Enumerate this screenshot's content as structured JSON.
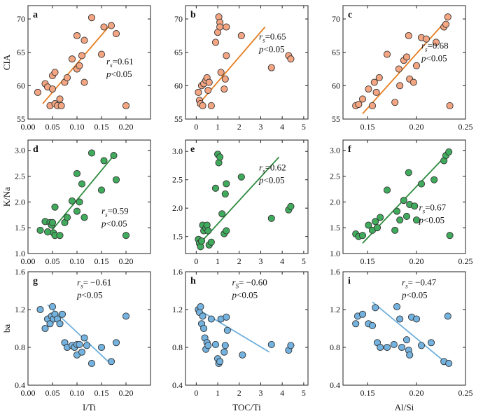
{
  "colors": {
    "orange": "#f4a582",
    "orange_line": "#e67e22",
    "green": "#41ab5d",
    "green_line": "#2e8b3f",
    "blue": "#74b3e0",
    "blue_line": "#6fb0dc"
  },
  "chart_data": [
    {
      "id": "a",
      "type": "scatter",
      "row": 0,
      "col": 0,
      "ylabel": "CIA",
      "xlim": [
        0,
        0.25
      ],
      "ylim": [
        55,
        72
      ],
      "xticks": [
        "0.00",
        "0.05",
        "0.10",
        "0.15",
        "0.20"
      ],
      "xtick_vals": [
        0,
        0.05,
        0.1,
        0.15,
        0.2
      ],
      "yticks": [
        "55",
        "60",
        "65",
        "70"
      ],
      "ytick_vals": [
        55,
        60,
        65,
        70
      ],
      "color": "orange",
      "points": [
        [
          0.02,
          59
        ],
        [
          0.035,
          60.3
        ],
        [
          0.04,
          59.8
        ],
        [
          0.045,
          57
        ],
        [
          0.05,
          59.5
        ],
        [
          0.05,
          61.5
        ],
        [
          0.055,
          62
        ],
        [
          0.055,
          57.3
        ],
        [
          0.06,
          57
        ],
        [
          0.065,
          58
        ],
        [
          0.068,
          57
        ],
        [
          0.075,
          60.5
        ],
        [
          0.08,
          61.2
        ],
        [
          0.09,
          64
        ],
        [
          0.1,
          67.5
        ],
        [
          0.1,
          62.5
        ],
        [
          0.105,
          63
        ],
        [
          0.11,
          64.5
        ],
        [
          0.115,
          66.8
        ],
        [
          0.115,
          60.5
        ],
        [
          0.13,
          70.2
        ],
        [
          0.15,
          64.7
        ],
        [
          0.155,
          68.8
        ],
        [
          0.17,
          69
        ],
        [
          0.18,
          67.8
        ],
        [
          0.2,
          57
        ]
      ],
      "fit": [
        [
          0.03,
          57.3
        ],
        [
          0.17,
          69.3
        ]
      ],
      "annot_rs": "rs=0.61",
      "annot_p": "p<0.05",
      "rs_main": "r",
      "rs_sub": "s",
      "rs_val": "=0.61"
    },
    {
      "id": "b",
      "type": "scatter",
      "row": 0,
      "col": 1,
      "xlim": [
        -0.5,
        5.2
      ],
      "ylim": [
        55,
        72
      ],
      "xticks": [
        "0",
        "1",
        "2",
        "3",
        "4",
        "5"
      ],
      "xtick_vals": [
        0,
        1,
        2,
        3,
        4,
        5
      ],
      "yticks": [
        "55",
        "60",
        "65",
        "70"
      ],
      "ytick_vals": [
        55,
        60,
        65,
        70
      ],
      "color": "orange",
      "points": [
        [
          0.1,
          59
        ],
        [
          0.15,
          57.8
        ],
        [
          0.2,
          57.3
        ],
        [
          0.25,
          60
        ],
        [
          0.3,
          57
        ],
        [
          0.35,
          60.3
        ],
        [
          0.45,
          60.8
        ],
        [
          0.5,
          61.2
        ],
        [
          0.55,
          59.3
        ],
        [
          0.6,
          60.5
        ],
        [
          0.7,
          57
        ],
        [
          0.9,
          66.5
        ],
        [
          1,
          68
        ],
        [
          1.05,
          70.3
        ],
        [
          1.1,
          69.5
        ],
        [
          1.1,
          68.8
        ],
        [
          1.15,
          62
        ],
        [
          1.3,
          59.5
        ],
        [
          1.35,
          61
        ],
        [
          1.4,
          64.5
        ],
        [
          1.4,
          68.8
        ],
        [
          2.1,
          67.5
        ],
        [
          3.5,
          62.7
        ],
        [
          4.3,
          64.5
        ],
        [
          4.4,
          64
        ]
      ],
      "fit": [
        [
          0.05,
          57
        ],
        [
          3.2,
          68.8
        ]
      ],
      "rs_main": "r",
      "rs_sub": "s",
      "rs_val": "=0.65",
      "annot_p": "p<0.05"
    },
    {
      "id": "c",
      "type": "scatter",
      "row": 0,
      "col": 2,
      "xlim": [
        0.125,
        0.25
      ],
      "ylim": [
        55,
        72
      ],
      "xticks": [
        "0.15",
        "0.20",
        "0.25"
      ],
      "xtick_vals": [
        0.15,
        0.2,
        0.25
      ],
      "yticks": [
        "55",
        "60",
        "65",
        "70"
      ],
      "ytick_vals": [
        55,
        60,
        65,
        70
      ],
      "color": "orange",
      "points": [
        [
          0.138,
          57
        ],
        [
          0.141,
          57.2
        ],
        [
          0.145,
          58
        ],
        [
          0.151,
          59.5
        ],
        [
          0.155,
          57
        ],
        [
          0.157,
          60.5
        ],
        [
          0.159,
          59
        ],
        [
          0.162,
          61.2
        ],
        [
          0.17,
          64.7
        ],
        [
          0.178,
          57.5
        ],
        [
          0.182,
          62.5
        ],
        [
          0.183,
          60
        ],
        [
          0.187,
          63.8
        ],
        [
          0.19,
          64.3
        ],
        [
          0.192,
          67.5
        ],
        [
          0.193,
          61
        ],
        [
          0.197,
          60.5
        ],
        [
          0.2,
          63
        ],
        [
          0.205,
          67.2
        ],
        [
          0.21,
          67
        ],
        [
          0.22,
          66.5
        ],
        [
          0.228,
          68.8
        ],
        [
          0.23,
          69.2
        ],
        [
          0.232,
          70.3
        ],
        [
          0.234,
          57
        ]
      ],
      "fit": [
        [
          0.145,
          55.8
        ],
        [
          0.23,
          69.7
        ]
      ],
      "rs_main": "r",
      "rs_sub": "s",
      "rs_val": "=0.68",
      "annot_p": "p<0.05"
    },
    {
      "id": "d",
      "type": "scatter",
      "row": 1,
      "col": 0,
      "ylabel": "K/Na",
      "xlim": [
        0,
        0.25
      ],
      "ylim": [
        1.0,
        3.2
      ],
      "xticks": [
        "0.00",
        "0.05",
        "0.10",
        "0.15",
        "0.20"
      ],
      "xtick_vals": [
        0,
        0.05,
        0.1,
        0.15,
        0.2
      ],
      "yticks": [
        "1.0",
        "1.5",
        "2.0",
        "2.5",
        "3.0"
      ],
      "ytick_vals": [
        1,
        1.5,
        2,
        2.5,
        3
      ],
      "color": "green",
      "points": [
        [
          0.025,
          1.45
        ],
        [
          0.035,
          1.62
        ],
        [
          0.04,
          1.42
        ],
        [
          0.045,
          1.6
        ],
        [
          0.048,
          1.55
        ],
        [
          0.05,
          1.6
        ],
        [
          0.052,
          1.4
        ],
        [
          0.055,
          1.35
        ],
        [
          0.055,
          1.9
        ],
        [
          0.065,
          1.35
        ],
        [
          0.075,
          1.6
        ],
        [
          0.08,
          1.7
        ],
        [
          0.09,
          2.02
        ],
        [
          0.1,
          2.55
        ],
        [
          0.1,
          1.82
        ],
        [
          0.105,
          2.0
        ],
        [
          0.11,
          2.35
        ],
        [
          0.115,
          1.7
        ],
        [
          0.13,
          2.95
        ],
        [
          0.15,
          2.23
        ],
        [
          0.155,
          2.8
        ],
        [
          0.175,
          2.9
        ],
        [
          0.18,
          2.43
        ],
        [
          0.2,
          1.35
        ]
      ],
      "fit": [
        [
          0.04,
          1.35
        ],
        [
          0.175,
          2.9
        ]
      ],
      "rs_main": "r",
      "rs_sub": "s",
      "rs_val": "=0.59",
      "annot_p": "p<0.05"
    },
    {
      "id": "e",
      "type": "scatter",
      "row": 1,
      "col": 1,
      "xlim": [
        -0.5,
        5.2
      ],
      "ylim": [
        1.2,
        3.2
      ],
      "xticks": [
        "0",
        "1",
        "2",
        "3",
        "4",
        "5"
      ],
      "xtick_vals": [
        0,
        1,
        2,
        3,
        4,
        5
      ],
      "yticks": [
        "1.5",
        "2.0",
        "2.5",
        "3.0"
      ],
      "ytick_vals": [
        1.5,
        2,
        2.5,
        3
      ],
      "color": "green",
      "points": [
        [
          0.1,
          1.45
        ],
        [
          0.15,
          1.38
        ],
        [
          0.2,
          1.32
        ],
        [
          0.25,
          1.42
        ],
        [
          0.3,
          1.7
        ],
        [
          0.35,
          1.6
        ],
        [
          0.45,
          1.65
        ],
        [
          0.5,
          1.7
        ],
        [
          0.55,
          1.6
        ],
        [
          0.6,
          1.35
        ],
        [
          0.7,
          1.4
        ],
        [
          0.9,
          2.35
        ],
        [
          1.0,
          2.95
        ],
        [
          1.05,
          2.8
        ],
        [
          1.1,
          2.9
        ],
        [
          1.2,
          1.9
        ],
        [
          1.3,
          1.55
        ],
        [
          1.35,
          2.25
        ],
        [
          1.4,
          2.43
        ],
        [
          1.4,
          1.6
        ],
        [
          2.1,
          2.55
        ],
        [
          3.5,
          1.82
        ],
        [
          4.3,
          1.97
        ],
        [
          4.4,
          2.03
        ]
      ],
      "fit": [
        [
          0.05,
          1.33
        ],
        [
          3.85,
          2.9
        ]
      ],
      "rs_main": "r",
      "rs_sub": "s",
      "rs_val": "=0.62",
      "annot_p": "p<0.05"
    },
    {
      "id": "f",
      "type": "scatter",
      "row": 1,
      "col": 2,
      "xlim": [
        0.125,
        0.25
      ],
      "ylim": [
        1.0,
        3.2
      ],
      "xticks": [
        "0.15",
        "0.20",
        "0.25"
      ],
      "xtick_vals": [
        0.15,
        0.2,
        0.25
      ],
      "yticks": [
        "1.0",
        "1.5",
        "2.0",
        "2.5",
        "3.0"
      ],
      "ytick_vals": [
        1,
        1.5,
        2,
        2.5,
        3
      ],
      "color": "green",
      "points": [
        [
          0.138,
          1.38
        ],
        [
          0.141,
          1.33
        ],
        [
          0.145,
          1.35
        ],
        [
          0.151,
          1.55
        ],
        [
          0.155,
          1.45
        ],
        [
          0.158,
          1.62
        ],
        [
          0.16,
          1.5
        ],
        [
          0.163,
          1.7
        ],
        [
          0.17,
          2.23
        ],
        [
          0.178,
          1.45
        ],
        [
          0.18,
          1.82
        ],
        [
          0.183,
          1.65
        ],
        [
          0.187,
          2.03
        ],
        [
          0.19,
          1.72
        ],
        [
          0.192,
          2.57
        ],
        [
          0.193,
          1.95
        ],
        [
          0.198,
          1.92
        ],
        [
          0.2,
          1.65
        ],
        [
          0.205,
          2.35
        ],
        [
          0.218,
          2.43
        ],
        [
          0.228,
          2.8
        ],
        [
          0.23,
          2.9
        ],
        [
          0.233,
          2.97
        ],
        [
          0.234,
          1.35
        ]
      ],
      "fit": [
        [
          0.145,
          1.2
        ],
        [
          0.23,
          2.9
        ]
      ],
      "rs_main": "r",
      "rs_sub": "s",
      "rs_val": "=0.67",
      "annot_p": "p<0.05"
    },
    {
      "id": "g",
      "type": "scatter",
      "row": 2,
      "col": 0,
      "ylabel": "ba",
      "xlabel": "I/Ti",
      "xlim": [
        0,
        0.25
      ],
      "ylim": [
        0.4,
        1.6
      ],
      "xticks": [
        "0.00",
        "0.05",
        "0.10",
        "0.15",
        "0.20"
      ],
      "xtick_vals": [
        0,
        0.05,
        0.1,
        0.15,
        0.2
      ],
      "yticks": [
        "0.4",
        "0.8",
        "1.2",
        "1.6"
      ],
      "ytick_vals": [
        0.4,
        0.8,
        1.2,
        1.6
      ],
      "color": "blue",
      "points": [
        [
          0.025,
          1.2
        ],
        [
          0.035,
          1.0
        ],
        [
          0.04,
          1.1
        ],
        [
          0.045,
          1.05
        ],
        [
          0.048,
          1.13
        ],
        [
          0.05,
          1.23
        ],
        [
          0.052,
          1.1
        ],
        [
          0.055,
          1.15
        ],
        [
          0.06,
          1.1
        ],
        [
          0.065,
          1.05
        ],
        [
          0.07,
          1.15
        ],
        [
          0.075,
          0.85
        ],
        [
          0.08,
          0.8
        ],
        [
          0.09,
          0.82
        ],
        [
          0.095,
          0.8
        ],
        [
          0.1,
          0.83
        ],
        [
          0.1,
          0.72
        ],
        [
          0.105,
          0.83
        ],
        [
          0.11,
          0.75
        ],
        [
          0.115,
          0.9
        ],
        [
          0.12,
          0.82
        ],
        [
          0.13,
          0.63
        ],
        [
          0.15,
          0.8
        ],
        [
          0.17,
          0.65
        ],
        [
          0.18,
          0.85
        ],
        [
          0.2,
          1.13
        ]
      ],
      "fit": [
        [
          0.04,
          1.25
        ],
        [
          0.17,
          0.62
        ]
      ],
      "rs_main": "r",
      "rs_sub": "s",
      "rs_val": "= −0.61",
      "annot_p": "p<0.05"
    },
    {
      "id": "h",
      "type": "scatter",
      "row": 2,
      "col": 1,
      "xlabel": "TOC/Ti",
      "xlim": [
        -0.5,
        5.2
      ],
      "ylim": [
        0.4,
        1.6
      ],
      "xticks": [
        "0",
        "1",
        "2",
        "3",
        "4",
        "5"
      ],
      "xtick_vals": [
        0,
        1,
        2,
        3,
        4,
        5
      ],
      "yticks": [
        "0.4",
        "0.8",
        "1.2",
        "1.6"
      ],
      "ytick_vals": [
        0.4,
        0.8,
        1.2,
        1.6
      ],
      "color": "blue",
      "points": [
        [
          0.1,
          1.2
        ],
        [
          0.15,
          1.17
        ],
        [
          0.2,
          1.23
        ],
        [
          0.25,
          1.05
        ],
        [
          0.3,
          1.13
        ],
        [
          0.35,
          1.0
        ],
        [
          0.4,
          0.9
        ],
        [
          0.45,
          0.78
        ],
        [
          0.5,
          0.85
        ],
        [
          0.55,
          0.82
        ],
        [
          0.7,
          1.1
        ],
        [
          0.9,
          0.83
        ],
        [
          1.0,
          0.68
        ],
        [
          1.05,
          0.63
        ],
        [
          1.1,
          0.65
        ],
        [
          1.15,
          1.1
        ],
        [
          1.3,
          0.75
        ],
        [
          1.35,
          0.82
        ],
        [
          1.4,
          1.12
        ],
        [
          1.45,
          0.98
        ],
        [
          2.15,
          0.72
        ],
        [
          3.5,
          0.83
        ],
        [
          4.3,
          0.77
        ],
        [
          4.4,
          0.82
        ]
      ],
      "fit": [
        [
          0.1,
          1.2
        ],
        [
          3.4,
          0.75
        ]
      ],
      "rs_main": "r",
      "rs_sub": "S",
      "rs_val": "= −0.60",
      "annot_p": "p<0.05"
    },
    {
      "id": "i",
      "type": "scatter",
      "row": 2,
      "col": 2,
      "xlabel": "Al/Si",
      "xlim": [
        0.125,
        0.25
      ],
      "ylim": [
        0.4,
        1.6
      ],
      "xticks": [
        "0.15",
        "0.20",
        "0.25"
      ],
      "xtick_vals": [
        0.15,
        0.2,
        0.25
      ],
      "yticks": [
        "0.4",
        "0.8",
        "1.2",
        "1.6"
      ],
      "ytick_vals": [
        0.4,
        0.8,
        1.2,
        1.6
      ],
      "color": "blue",
      "points": [
        [
          0.138,
          1.05
        ],
        [
          0.14,
          1.13
        ],
        [
          0.145,
          1.15
        ],
        [
          0.151,
          1.05
        ],
        [
          0.155,
          1.03
        ],
        [
          0.158,
          1.22
        ],
        [
          0.16,
          0.85
        ],
        [
          0.163,
          0.8
        ],
        [
          0.17,
          0.8
        ],
        [
          0.177,
          0.83
        ],
        [
          0.18,
          1.23
        ],
        [
          0.183,
          1.1
        ],
        [
          0.185,
          0.8
        ],
        [
          0.19,
          0.88
        ],
        [
          0.192,
          0.77
        ],
        [
          0.193,
          0.72
        ],
        [
          0.195,
          1.12
        ],
        [
          0.2,
          1.1
        ],
        [
          0.205,
          0.82
        ],
        [
          0.215,
          0.85
        ],
        [
          0.228,
          0.65
        ],
        [
          0.232,
          1.13
        ],
        [
          0.233,
          0.63
        ]
      ],
      "fit": [
        [
          0.155,
          1.28
        ],
        [
          0.232,
          0.62
        ]
      ],
      "rs_main": "r",
      "rs_sub": "s",
      "rs_val": "= −0.47",
      "annot_p": "p<0.05"
    }
  ]
}
